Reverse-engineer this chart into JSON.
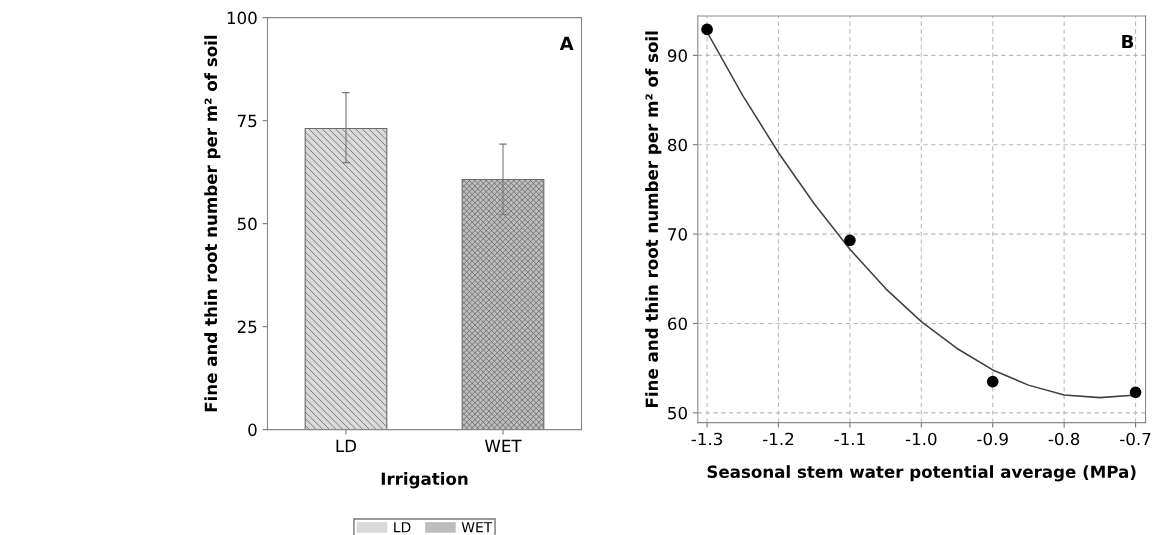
{
  "chart_data": [
    {
      "type": "bar",
      "xlabel": "Irrigation",
      "ylabel": "Fine and thin root number per m² of soil",
      "categories": [
        "LD",
        "WET"
      ],
      "series": [
        {
          "name": "LD",
          "color": "#d9d9d9",
          "values": [
            73.1,
            null
          ],
          "errors": [
            [
              64.8,
              81.8
            ],
            null
          ]
        },
        {
          "name": "WET",
          "color": "#bdbdbd",
          "values": [
            null,
            60.7
          ],
          "errors": [
            null,
            [
              52.2,
              69.3
            ]
          ]
        }
      ],
      "ylim": [
        0,
        100
      ],
      "yticks": [
        0,
        25,
        50,
        75,
        100
      ],
      "grid": false,
      "legend": "bottom",
      "annotations": [
        "A"
      ]
    },
    {
      "type": "scatter",
      "xlabel": "Seasonal stem water potential average (MPa)",
      "ylabel": "Fine and thin root number per m² of soil",
      "series": [
        {
          "type": "scatter",
          "color": "#000000",
          "x": [
            -1.3,
            -1.1,
            -0.9,
            -0.7
          ],
          "values": [
            92.9,
            69.3,
            53.5,
            52.3
          ],
          "marker": "circle"
        },
        {
          "type": "line",
          "color": "#404040",
          "x": [
            -1.3,
            -1.25,
            -1.2,
            -1.15,
            -1.1,
            -1.05,
            -1.0,
            -0.95,
            -0.9,
            -0.85,
            -0.8,
            -0.75,
            -0.7
          ],
          "values": [
            92.6,
            85.5,
            79.1,
            73.4,
            68.3,
            63.9,
            60.2,
            57.2,
            54.8,
            53.1,
            52.0,
            51.7,
            52.0
          ],
          "marker": "none",
          "line_style": "solid"
        }
      ],
      "xlim": [
        -1.313,
        -0.686
      ],
      "xticks": [
        {
          "value": -1.3,
          "label": "-1.3"
        },
        {
          "value": -1.2,
          "label": "-1.2"
        },
        {
          "value": -1.1,
          "label": "-1.1"
        },
        {
          "value": -1.0,
          "label": "-1.0"
        },
        {
          "value": -0.9,
          "label": "-0.9"
        },
        {
          "value": -0.8,
          "label": "-0.8"
        },
        {
          "value": -0.7,
          "label": "-0.7"
        }
      ],
      "ylim": [
        48.9,
        94.4
      ],
      "yticks": [
        50,
        60,
        70,
        80,
        90
      ],
      "grid": true,
      "legend": false,
      "annotations": [
        "B"
      ]
    }
  ]
}
